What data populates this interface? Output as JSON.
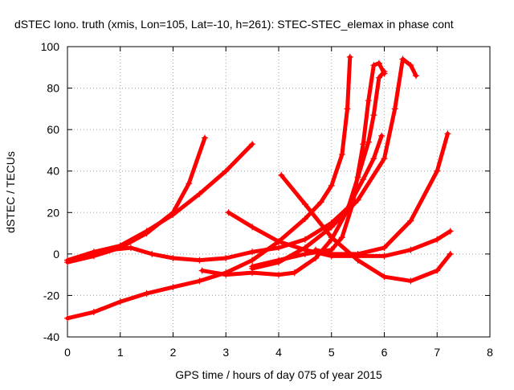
{
  "chart_data": {
    "type": "scatter",
    "title": "dSTEC Iono. truth (xmis, Lon=105, Lat=-10, h=261): STEC-STEC_elemax in phase cont",
    "xlabel": "GPS time / hours of day 075 of year 2015",
    "ylabel": "dSTEC  / TECUs",
    "xlim": [
      0,
      8
    ],
    "ylim": [
      -40,
      100
    ],
    "xticks": [
      "0",
      "1",
      "2",
      "3",
      "4",
      "5",
      "6",
      "7",
      "8"
    ],
    "yticks": [
      "-40",
      "-20",
      "0",
      "20",
      "40",
      "60",
      "80",
      "100"
    ],
    "grid": true,
    "marker": "+",
    "color": "#ff0000",
    "series": [
      {
        "points": [
          [
            0.0,
            -31
          ],
          [
            0.5,
            -28
          ],
          [
            1.0,
            -23
          ],
          [
            1.5,
            -19
          ],
          [
            2.0,
            -16
          ],
          [
            2.5,
            -13
          ],
          [
            3.0,
            -9
          ],
          [
            3.5,
            -3
          ],
          [
            4.0,
            6
          ],
          [
            4.5,
            17
          ],
          [
            4.8,
            25
          ],
          [
            5.0,
            33
          ],
          [
            5.2,
            48
          ],
          [
            5.3,
            70
          ],
          [
            5.35,
            95
          ]
        ]
      },
      {
        "points": [
          [
            0.0,
            -4
          ],
          [
            0.5,
            -1
          ],
          [
            1.0,
            3
          ],
          [
            1.5,
            10
          ],
          [
            2.0,
            20
          ],
          [
            2.3,
            34
          ],
          [
            2.6,
            56
          ]
        ]
      },
      {
        "points": [
          [
            0.0,
            -3
          ],
          [
            0.5,
            1
          ],
          [
            1.0,
            4
          ],
          [
            1.5,
            11
          ],
          [
            2.0,
            19
          ],
          [
            2.5,
            29
          ],
          [
            3.0,
            40
          ],
          [
            3.5,
            53
          ]
        ]
      },
      {
        "points": [
          [
            0.8,
            2
          ],
          [
            1.2,
            3
          ],
          [
            1.6,
            0
          ],
          [
            2.0,
            -2
          ],
          [
            2.5,
            -3
          ],
          [
            3.0,
            -2
          ],
          [
            3.5,
            1
          ],
          [
            4.0,
            3
          ],
          [
            4.5,
            7
          ],
          [
            5.0,
            15
          ],
          [
            5.3,
            22
          ],
          [
            5.6,
            36
          ],
          [
            5.8,
            46
          ],
          [
            5.95,
            57
          ]
        ]
      },
      {
        "points": [
          [
            3.05,
            20
          ],
          [
            3.5,
            13
          ],
          [
            4.0,
            6
          ],
          [
            4.5,
            2
          ],
          [
            5.0,
            -1
          ],
          [
            5.5,
            -1
          ],
          [
            6.0,
            -1
          ],
          [
            6.5,
            2
          ],
          [
            7.0,
            7
          ],
          [
            7.25,
            11
          ]
        ]
      },
      {
        "points": [
          [
            4.05,
            38
          ],
          [
            4.5,
            24
          ],
          [
            5.0,
            8
          ],
          [
            5.5,
            -3
          ],
          [
            6.0,
            -11
          ],
          [
            6.5,
            -13
          ],
          [
            7.0,
            -8
          ],
          [
            7.25,
            0
          ]
        ]
      },
      {
        "points": [
          [
            2.55,
            -8
          ],
          [
            3.0,
            -10
          ],
          [
            3.5,
            -9
          ],
          [
            4.0,
            -10
          ],
          [
            4.3,
            -9
          ],
          [
            4.7,
            -2
          ],
          [
            5.0,
            7
          ],
          [
            5.3,
            21
          ],
          [
            5.5,
            37
          ],
          [
            5.7,
            54
          ],
          [
            5.8,
            67
          ],
          [
            5.9,
            85
          ],
          [
            6.0,
            88
          ]
        ]
      },
      {
        "points": [
          [
            3.5,
            -6
          ],
          [
            4.0,
            -3
          ],
          [
            4.5,
            0
          ],
          [
            5.0,
            2
          ],
          [
            5.2,
            8
          ],
          [
            5.4,
            24
          ],
          [
            5.6,
            53
          ],
          [
            5.7,
            74
          ],
          [
            5.8,
            91
          ],
          [
            5.9,
            92
          ],
          [
            6.0,
            87
          ]
        ]
      },
      {
        "points": [
          [
            3.5,
            -7
          ],
          [
            4.0,
            -4
          ],
          [
            4.5,
            3
          ],
          [
            5.0,
            13
          ],
          [
            5.5,
            26
          ],
          [
            6.0,
            46
          ],
          [
            6.2,
            70
          ],
          [
            6.35,
            94
          ],
          [
            6.5,
            91
          ],
          [
            6.6,
            86
          ]
        ]
      },
      {
        "points": [
          [
            4.7,
            2
          ],
          [
            5.0,
            0
          ],
          [
            5.5,
            0
          ],
          [
            6.0,
            3
          ],
          [
            6.5,
            16
          ],
          [
            7.0,
            40
          ],
          [
            7.2,
            58
          ]
        ]
      }
    ]
  }
}
